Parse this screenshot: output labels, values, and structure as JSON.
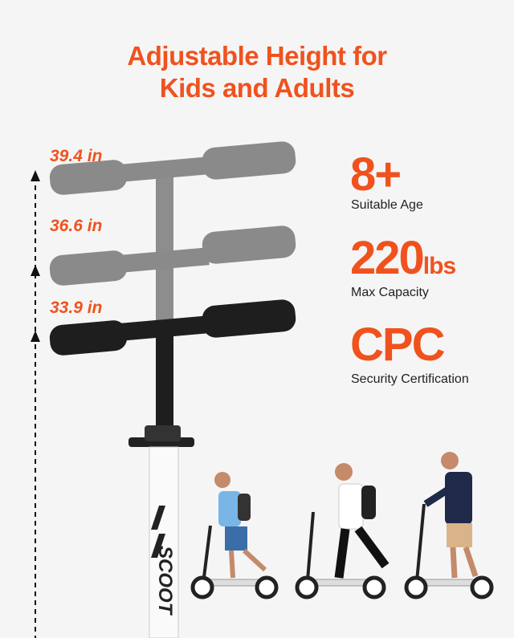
{
  "title": {
    "line1": "Adjustable Height for",
    "line2": "Kids and Adults"
  },
  "heights": [
    "39.4 in",
    "36.6 in",
    "33.9 in"
  ],
  "stats": [
    {
      "value": "8+",
      "unit": "",
      "label": "Suitable Age"
    },
    {
      "value": "220",
      "unit": "lbs",
      "label": "Max Capacity"
    },
    {
      "value": "CPC",
      "unit": "",
      "label": "Security Certification"
    }
  ],
  "pole_lettering": "SCOOT",
  "colors": {
    "accent": "#f0521e",
    "background": "#f5f5f5",
    "grip_dark": "#1e1e1e",
    "grip_ghost": "#8a8a8a"
  }
}
